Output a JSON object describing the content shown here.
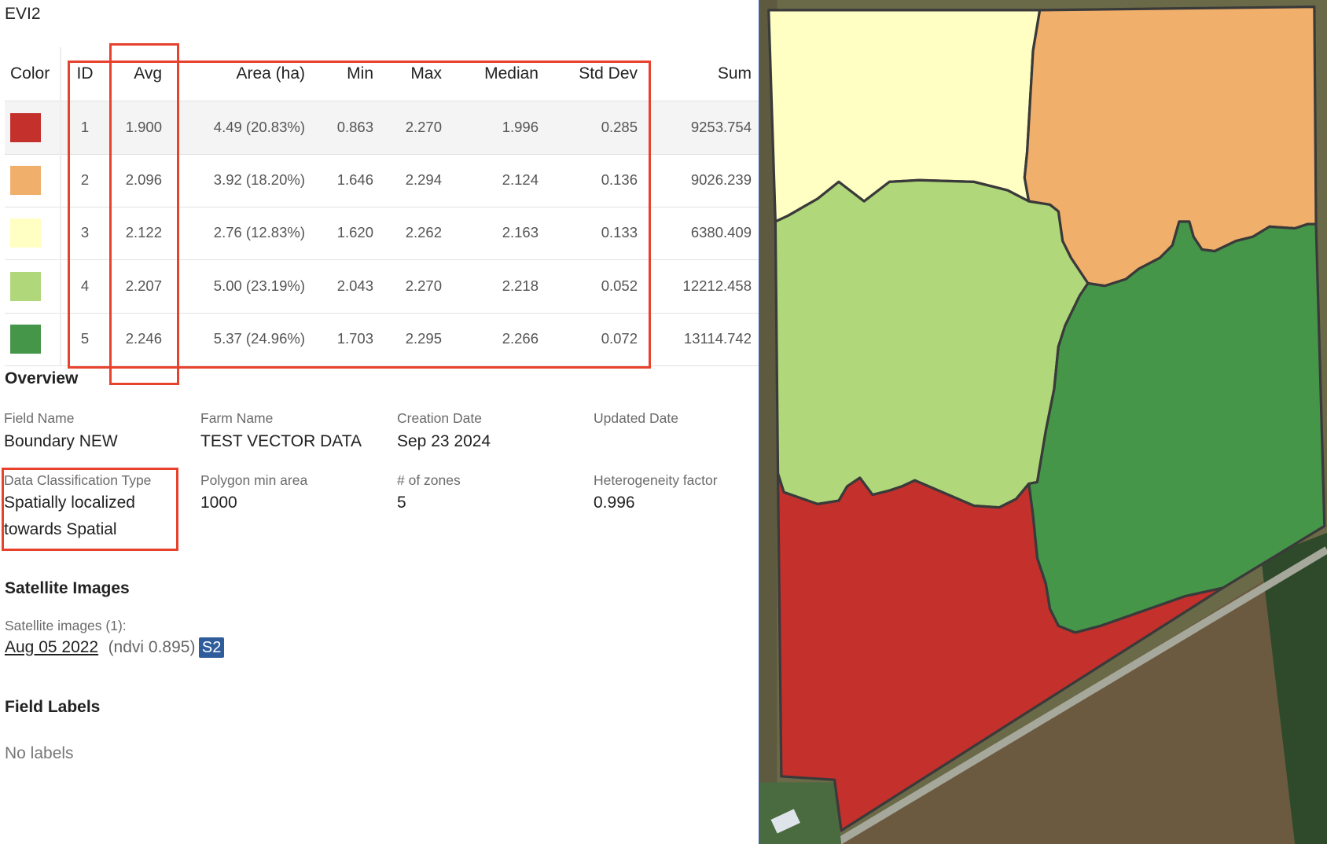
{
  "panel": {
    "title": "EVI2"
  },
  "table": {
    "headers": [
      "Color",
      "ID",
      "Avg",
      "Area (ha)",
      "Min",
      "Max",
      "Median",
      "Std Dev",
      "Sum"
    ],
    "rows": [
      {
        "color": "#c4302b",
        "id": "1",
        "avg": "1.900",
        "area": "4.49 (20.83%)",
        "min": "0.863",
        "max": "2.270",
        "median": "1.996",
        "std": "0.285",
        "sum": "9253.754"
      },
      {
        "color": "#f1af6c",
        "id": "2",
        "avg": "2.096",
        "area": "3.92 (18.20%)",
        "min": "1.646",
        "max": "2.294",
        "median": "2.124",
        "std": "0.136",
        "sum": "9026.239"
      },
      {
        "color": "#ffffc4",
        "id": "3",
        "avg": "2.122",
        "area": "2.76 (12.83%)",
        "min": "1.620",
        "max": "2.262",
        "median": "2.163",
        "std": "0.133",
        "sum": "6380.409"
      },
      {
        "color": "#b0d77a",
        "id": "4",
        "avg": "2.207",
        "area": "5.00 (23.19%)",
        "min": "2.043",
        "max": "2.270",
        "median": "2.218",
        "std": "0.052",
        "sum": "12212.458"
      },
      {
        "color": "#46964a",
        "id": "5",
        "avg": "2.246",
        "area": "5.37 (24.96%)",
        "min": "1.703",
        "max": "2.295",
        "median": "2.266",
        "std": "0.072",
        "sum": "13114.742"
      }
    ]
  },
  "overview": {
    "title": "Overview",
    "fields": [
      {
        "label": "Field Name",
        "value": "Boundary NEW"
      },
      {
        "label": "Farm Name",
        "value": "TEST VECTOR DATA"
      },
      {
        "label": "Creation Date",
        "value": "Sep 23 2024"
      },
      {
        "label": "Updated Date",
        "value": ""
      },
      {
        "label": "Data Classification Type",
        "value": "Spatially localized",
        "value2": "towards Spatial"
      },
      {
        "label": "Polygon min area",
        "value": "1000"
      },
      {
        "label": "# of zones",
        "value": "5"
      },
      {
        "label": "Heterogeneity factor",
        "value": "0.996"
      }
    ]
  },
  "satellite": {
    "title": "Satellite Images",
    "count_label": "Satellite images (1):",
    "image_date": "Aug 05 2022",
    "ndvi": "(ndvi 0.895)",
    "source_badge": "S2"
  },
  "field_labels": {
    "title": "Field Labels",
    "empty": "No labels"
  },
  "colors": {
    "highlight_box": "#e8412c",
    "badge": "#2f5d9c",
    "outline": "#3a3a3a"
  }
}
